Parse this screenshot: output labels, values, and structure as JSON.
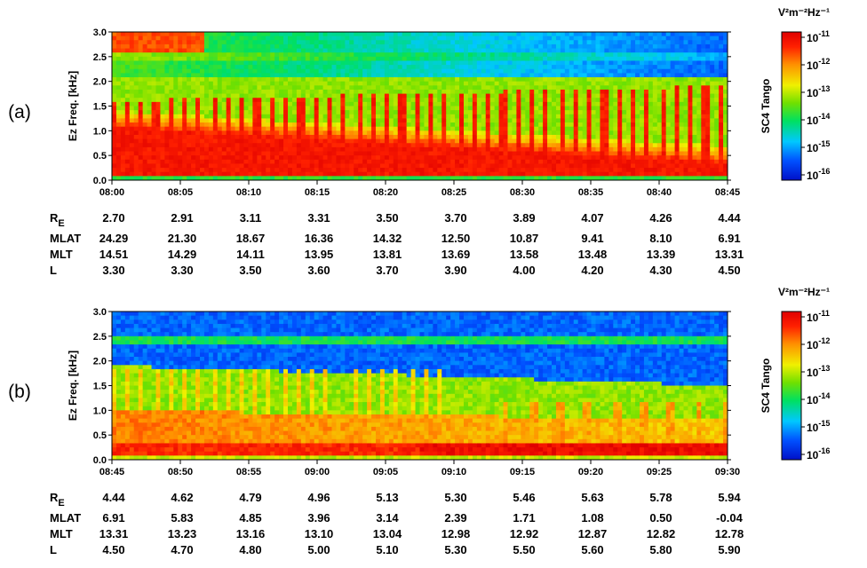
{
  "colors": {
    "scale": [
      "#0010c8",
      "#0050ff",
      "#00c8ff",
      "#00e060",
      "#70e000",
      "#f0f000",
      "#ff9000",
      "#ff2000",
      "#e00000"
    ]
  },
  "chart_data": [
    {
      "type": "heatmap",
      "panel_label": "(a)",
      "ylabel": "Ez Freq. [kHz]",
      "yticks": [
        "0.0",
        "0.5",
        "1.0",
        "1.5",
        "2.0",
        "2.5",
        "3.0"
      ],
      "ylim": [
        0,
        3.0
      ],
      "xticks": [
        "08:00",
        "08:05",
        "08:10",
        "08:15",
        "08:20",
        "08:25",
        "08:30",
        "08:35",
        "08:40",
        "08:45"
      ],
      "colorbar": {
        "units": "V²m⁻²Hz⁻¹",
        "label": "SC4 Tango",
        "ticks": [
          "10",
          "10",
          "10",
          "10",
          "10",
          "10"
        ],
        "exponents": [
          "-11",
          "-12",
          "-13",
          "-14",
          "-15",
          "-16"
        ]
      },
      "ephemeris": [
        {
          "label": "R",
          "sub": "E",
          "values": [
            "2.70",
            "2.91",
            "3.11",
            "3.31",
            "3.50",
            "3.70",
            "3.89",
            "4.07",
            "4.26",
            "4.44"
          ]
        },
        {
          "label": "MLAT",
          "sub": "",
          "values": [
            "24.29",
            "21.30",
            "18.67",
            "16.36",
            "14.32",
            "12.50",
            "10.87",
            "9.41",
            "8.10",
            "6.91"
          ]
        },
        {
          "label": "MLT",
          "sub": "",
          "values": [
            "14.51",
            "14.29",
            "14.11",
            "13.95",
            "13.81",
            "13.69",
            "13.58",
            "13.48",
            "13.39",
            "13.31"
          ]
        },
        {
          "label": "L",
          "sub": "",
          "values": [
            "3.30",
            "3.30",
            "3.50",
            "3.60",
            "3.70",
            "3.90",
            "4.00",
            "4.20",
            "4.30",
            "4.50"
          ]
        }
      ]
    },
    {
      "type": "heatmap",
      "panel_label": "(b)",
      "ylabel": "Ez Freq. [kHz]",
      "yticks": [
        "0.0",
        "0.5",
        "1.0",
        "1.5",
        "2.0",
        "2.5",
        "3.0"
      ],
      "ylim": [
        0,
        3.0
      ],
      "xticks": [
        "08:45",
        "08:50",
        "08:55",
        "09:00",
        "09:05",
        "09:10",
        "09:15",
        "09:20",
        "09:25",
        "09:30"
      ],
      "colorbar": {
        "units": "V²m⁻²Hz⁻¹",
        "label": "SC4 Tango",
        "ticks": [
          "10",
          "10",
          "10",
          "10",
          "10",
          "10"
        ],
        "exponents": [
          "-11",
          "-12",
          "-13",
          "-14",
          "-15",
          "-16"
        ]
      },
      "ephemeris": [
        {
          "label": "R",
          "sub": "E",
          "values": [
            "4.44",
            "4.62",
            "4.79",
            "4.96",
            "5.13",
            "5.30",
            "5.46",
            "5.63",
            "5.78",
            "5.94"
          ]
        },
        {
          "label": "MLAT",
          "sub": "",
          "values": [
            "6.91",
            "5.83",
            "4.85",
            "3.96",
            "3.14",
            "2.39",
            "1.71",
            "1.08",
            "0.50",
            "-0.04"
          ]
        },
        {
          "label": "MLT",
          "sub": "",
          "values": [
            "13.31",
            "13.23",
            "13.16",
            "13.10",
            "13.04",
            "12.98",
            "12.92",
            "12.87",
            "12.82",
            "12.78"
          ]
        },
        {
          "label": "L",
          "sub": "",
          "values": [
            "4.50",
            "4.70",
            "4.80",
            "5.00",
            "5.10",
            "5.30",
            "5.50",
            "5.60",
            "5.80",
            "5.90"
          ]
        }
      ]
    }
  ]
}
